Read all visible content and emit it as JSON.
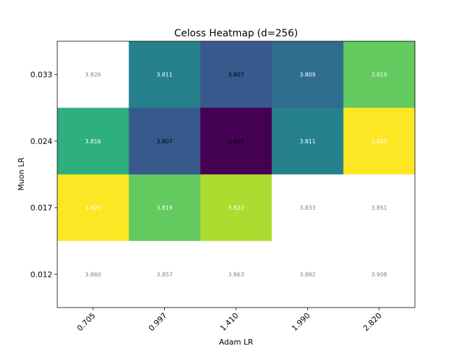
{
  "chart_data": {
    "type": "heatmap",
    "title": "Celoss Heatmap (d=256)",
    "xlabel": "Adam LR",
    "ylabel": "Muon LR",
    "x_categories": [
      "0.705",
      "0.997",
      "1.410",
      "1.990",
      "2.820"
    ],
    "y_categories": [
      "0.033",
      "0.024",
      "0.017",
      "0.012"
    ],
    "values": [
      [
        3.826,
        3.811,
        3.807,
        3.809,
        3.819
      ],
      [
        3.816,
        3.807,
        3.8,
        3.811,
        3.825
      ],
      [
        3.825,
        3.819,
        3.822,
        3.833,
        3.851
      ],
      [
        3.86,
        3.857,
        3.863,
        3.882,
        3.908
      ]
    ],
    "value_labels": [
      [
        "3.826",
        "3.811",
        "3.807",
        "3.809",
        "3.819"
      ],
      [
        "3.816",
        "3.807",
        "3.800",
        "3.811",
        "3.825"
      ],
      [
        "3.825",
        "3.819",
        "3.822",
        "3.833",
        "3.851"
      ],
      [
        "3.860",
        "3.857",
        "3.863",
        "3.882",
        "3.908"
      ]
    ],
    "color_range": [
      3.8,
      3.825
    ],
    "colormap": "viridis",
    "values_outside_range_color": "#ffffff",
    "grid": false,
    "colors": {
      "label_dark": "#000000",
      "label_light": "#ffffff",
      "label_masked": "#808080"
    }
  }
}
